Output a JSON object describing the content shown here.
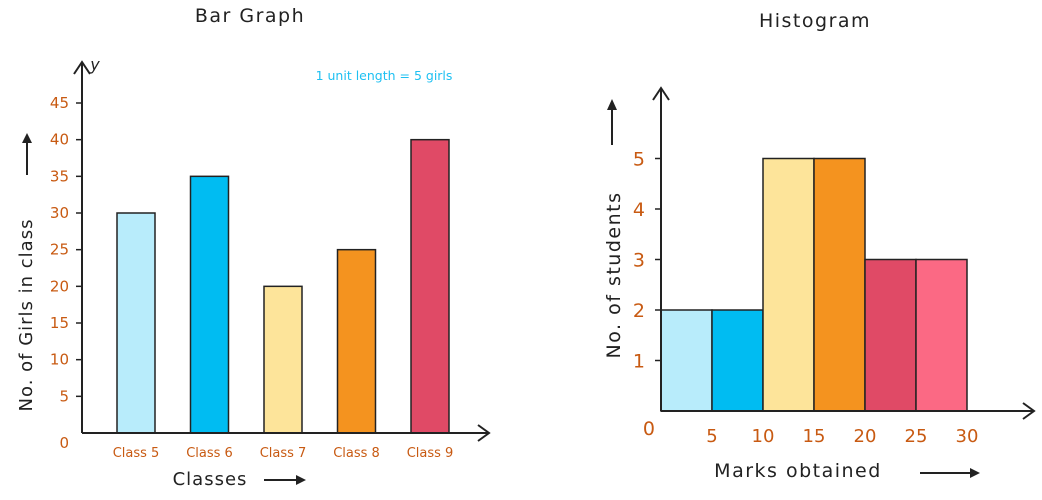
{
  "chart_data": [
    {
      "type": "bar",
      "title": "Bar Graph",
      "xlabel": "Classes",
      "ylabel": "No. of Girls in class",
      "y_axis_letter": "y",
      "origin_label": "0",
      "note": "1 unit length = 5 girls",
      "categories": [
        "Class 5",
        "Class 6",
        "Class 7",
        "Class 8",
        "Class 9"
      ],
      "values": [
        30,
        35,
        20,
        25,
        40
      ],
      "colors": [
        "#b8ecfb",
        "#00bcf2",
        "#fde49a",
        "#f4931f",
        "#e04a66"
      ],
      "yticks": [
        "5",
        "10",
        "15",
        "20",
        "25",
        "30",
        "35",
        "40",
        "45"
      ],
      "ylim": [
        0,
        45
      ],
      "grid": false
    },
    {
      "type": "bar",
      "subtype": "histogram",
      "title": "Histogram",
      "xlabel": "Marks obtained",
      "ylabel": "No. of students",
      "origin_label": "0",
      "bins": [
        [
          0,
          5
        ],
        [
          5,
          10
        ],
        [
          10,
          15
        ],
        [
          15,
          20
        ],
        [
          20,
          25
        ],
        [
          25,
          30
        ]
      ],
      "values": [
        2,
        2,
        5,
        5,
        3,
        3
      ],
      "colors": [
        "#b8ecfb",
        "#00bcf2",
        "#fde49a",
        "#f4931f",
        "#e04a66",
        "#fb6984"
      ],
      "xticks": [
        "5",
        "10",
        "15",
        "20",
        "25",
        "30"
      ],
      "yticks": [
        "1",
        "2",
        "3",
        "4",
        "5"
      ],
      "ylim": [
        0,
        5
      ],
      "grid": false
    }
  ]
}
